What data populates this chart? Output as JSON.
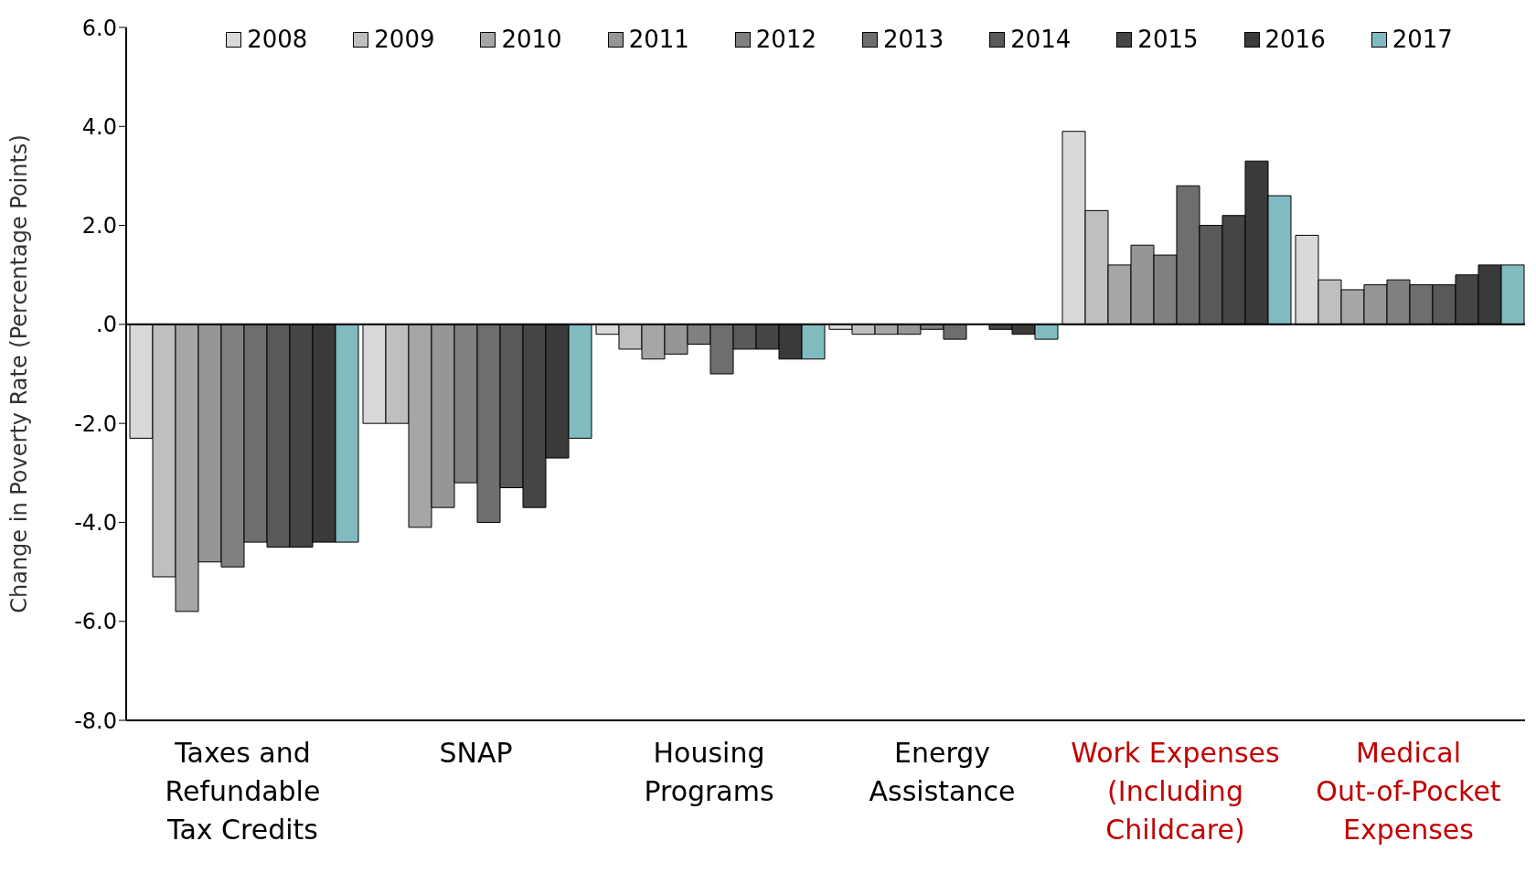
{
  "chart_data": {
    "type": "bar",
    "ylabel": "Change in Poverty Rate (Percentage Points)",
    "categories": [
      "Taxes and Refundable Tax Credits",
      "SNAP",
      "Housing Programs",
      "Energy Assistance",
      "Work Expenses (Including Childcare)",
      "Medical Out-of-Pocket Expenses"
    ],
    "series": [
      {
        "name": "2008",
        "color": "#d9d9d9",
        "values": [
          -2.3,
          -2.0,
          -0.2,
          -0.1,
          3.9,
          1.8
        ]
      },
      {
        "name": "2009",
        "color": "#bfbfbf",
        "values": [
          -5.1,
          -2.0,
          -0.5,
          -0.2,
          2.3,
          0.9
        ]
      },
      {
        "name": "2010",
        "color": "#a6a6a6",
        "values": [
          -5.8,
          -4.1,
          -0.7,
          -0.2,
          1.2,
          0.7
        ]
      },
      {
        "name": "2011",
        "color": "#969696",
        "values": [
          -4.8,
          -3.7,
          -0.6,
          -0.2,
          1.6,
          0.8
        ]
      },
      {
        "name": "2012",
        "color": "#808080",
        "values": [
          -4.9,
          -3.2,
          -0.4,
          -0.1,
          1.4,
          0.9
        ]
      },
      {
        "name": "2013",
        "color": "#6e6e6e",
        "values": [
          -4.4,
          -4.0,
          -1.0,
          -0.3,
          2.8,
          0.8
        ]
      },
      {
        "name": "2014",
        "color": "#595959",
        "values": [
          -4.5,
          -3.3,
          -0.5,
          0.0,
          2.0,
          0.8
        ]
      },
      {
        "name": "2015",
        "color": "#454545",
        "values": [
          -4.5,
          -3.7,
          -0.5,
          -0.1,
          2.2,
          1.0
        ]
      },
      {
        "name": "2016",
        "color": "#3a3a3a",
        "values": [
          -4.4,
          -2.7,
          -0.7,
          -0.2,
          3.3,
          1.2
        ]
      },
      {
        "name": "2017",
        "color": "#80bcbf",
        "values": [
          -4.4,
          -2.3,
          -0.7,
          -0.3,
          2.6,
          1.2
        ]
      }
    ],
    "ylim": [
      -8,
      6
    ],
    "yticks": [
      {
        "value": -8,
        "label": "-8.0"
      },
      {
        "value": -6,
        "label": "-6.0"
      },
      {
        "value": -4,
        "label": "-4.0"
      },
      {
        "value": -2,
        "label": "-2.0"
      },
      {
        "value": 0,
        "label": ".0"
      },
      {
        "value": 2,
        "label": "2.0"
      },
      {
        "value": 4,
        "label": "4.0"
      },
      {
        "value": 6,
        "label": "6.0"
      }
    ],
    "ref_lines": [
      {
        "axis": "y",
        "value": 0,
        "color": "#000000"
      }
    ],
    "grid": false,
    "legend": "top"
  }
}
